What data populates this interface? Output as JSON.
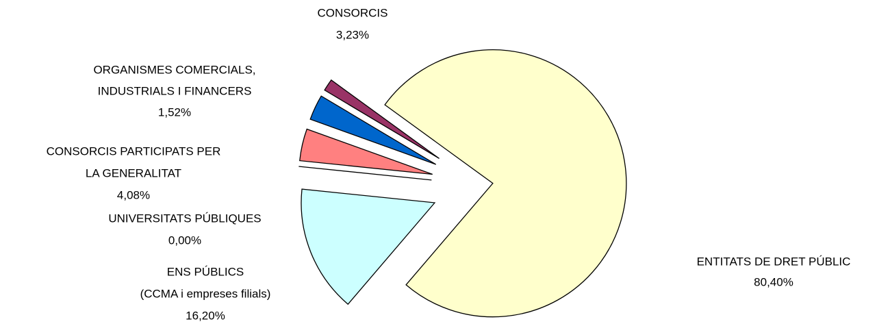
{
  "chart_data": {
    "type": "pie",
    "categories": [
      [
        "ENTITATS DE DRET PÚBLIC"
      ],
      [
        "ENS PÚBLICS",
        "(CCMA i empreses filials)"
      ],
      [
        "UNIVERSITATS PÚBLIQUES"
      ],
      [
        "CONSORCIS PARTICIPATS PER",
        "LA GENERALITAT"
      ],
      [
        "CONSORCIS"
      ],
      [
        "ORGANISMES COMERCIALS,",
        "INDUSTRIALS I FINANCERS"
      ]
    ],
    "values": [
      80.4,
      16.2,
      0.0,
      4.08,
      3.23,
      1.52
    ],
    "value_labels": [
      "80,40%",
      "16,20%",
      "0,00%",
      "4,08%",
      "3,23%",
      "1,52%"
    ],
    "colors": [
      "#FFFFCC",
      "#CCFFFF",
      "#FFFFFF",
      "#FF8080",
      "#0066CC",
      "#993366"
    ]
  }
}
